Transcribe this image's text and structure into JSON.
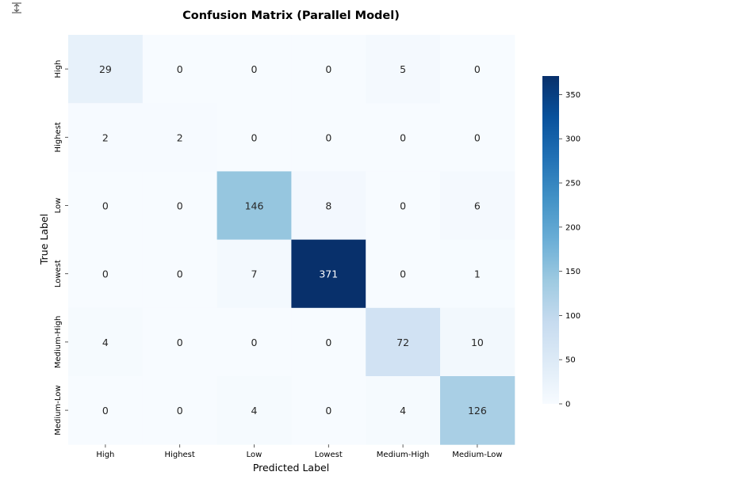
{
  "chart_data": {
    "type": "heatmap",
    "title": "Confusion Matrix (Parallel Model)",
    "xlabel": "Predicted Label",
    "ylabel": "True Label",
    "x_categories": [
      "High",
      "Highest",
      "Low",
      "Lowest",
      "Medium-High",
      "Medium-Low"
    ],
    "y_categories": [
      "High",
      "Highest",
      "Low",
      "Lowest",
      "Medium-High",
      "Medium-Low"
    ],
    "values": [
      [
        29,
        0,
        0,
        0,
        5,
        0
      ],
      [
        2,
        2,
        0,
        0,
        0,
        0
      ],
      [
        0,
        0,
        146,
        8,
        0,
        6
      ],
      [
        0,
        0,
        7,
        371,
        0,
        1
      ],
      [
        4,
        0,
        0,
        0,
        72,
        10
      ],
      [
        0,
        0,
        4,
        0,
        4,
        126
      ]
    ],
    "colorbar": {
      "min": 0,
      "max": 371,
      "ticks": [
        0,
        50,
        100,
        150,
        200,
        250,
        300,
        350
      ]
    },
    "colormap": "Blues",
    "grid": false
  },
  "toolbar": {
    "icon": "expand-output-icon"
  }
}
